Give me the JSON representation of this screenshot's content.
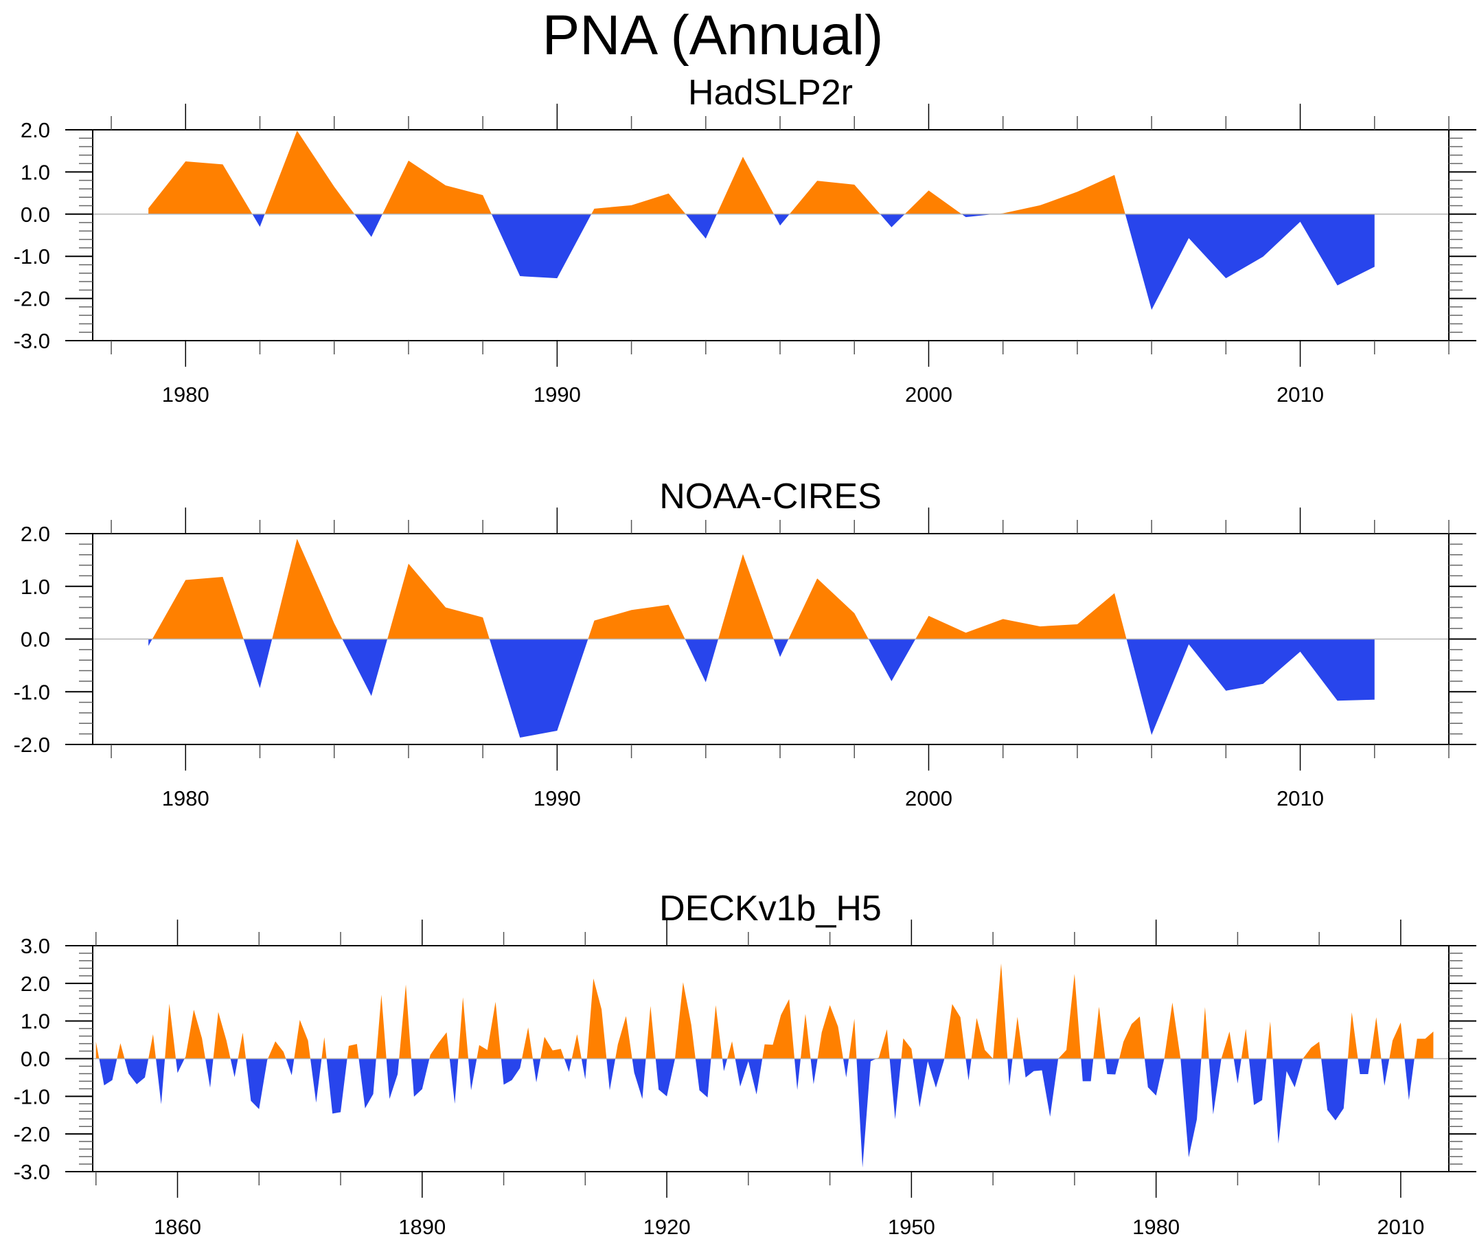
{
  "title": "PNA (Annual)",
  "colors": {
    "positive": "#ff8000",
    "negative": "#2845ec",
    "axis": "#000000",
    "zero_line": "#b4b4b4"
  },
  "chart_data": [
    {
      "type": "area",
      "title": "HadSLP2r",
      "xlabel": "",
      "ylabel": "",
      "fill": "positive above zero orange, negative below zero blue",
      "xlim": [
        1977.5,
        2014
      ],
      "ylim": [
        -3.0,
        2.0
      ],
      "yticks": [
        2.0,
        1.0,
        0.0,
        -1.0,
        -2.0,
        -3.0
      ],
      "ytick_labels": [
        "2.0",
        "1.0",
        "0.0",
        "-1.0",
        "-2.0",
        "-3.0"
      ],
      "xticks_major": [
        1980,
        1990,
        2000,
        2010
      ],
      "xtick_labels": [
        "1980",
        "1990",
        "2000",
        "2010"
      ],
      "xticks_minor_step": 2,
      "yticks_minor_step": 0.2,
      "x": [
        1979,
        1980,
        1981,
        1982,
        1983,
        1984,
        1985,
        1986,
        1987,
        1988,
        1989,
        1990,
        1991,
        1992,
        1993,
        1994,
        1995,
        1996,
        1997,
        1998,
        1999,
        2000,
        2001,
        2002,
        2003,
        2004,
        2005,
        2006,
        2007,
        2008,
        2009,
        2010,
        2011,
        2012
      ],
      "values": [
        0.14,
        1.25,
        1.18,
        -0.3,
        1.98,
        0.65,
        -0.54,
        1.27,
        0.68,
        0.45,
        -1.47,
        -1.52,
        0.13,
        0.21,
        0.49,
        -0.58,
        1.36,
        -0.27,
        0.79,
        0.7,
        -0.31,
        0.56,
        -0.07,
        0.02,
        0.21,
        0.53,
        0.93,
        -2.27,
        -0.57,
        -1.52,
        -1.01,
        -0.18,
        -1.69,
        -1.25
      ]
    },
    {
      "type": "area",
      "title": "NOAA-CIRES",
      "xlabel": "",
      "ylabel": "",
      "fill": "positive above zero orange, negative below zero blue",
      "xlim": [
        1977.5,
        2014
      ],
      "ylim": [
        -2.0,
        2.0
      ],
      "yticks": [
        2.0,
        1.0,
        0.0,
        -1.0,
        -2.0
      ],
      "ytick_labels": [
        "2.0",
        "1.0",
        "0.0",
        "-1.0",
        "-2.0"
      ],
      "xticks_major": [
        1980,
        1990,
        2000,
        2010
      ],
      "xtick_labels": [
        "1980",
        "1990",
        "2000",
        "2010"
      ],
      "xticks_minor_step": 2,
      "yticks_minor_step": 0.2,
      "x": [
        1979,
        1980,
        1981,
        1982,
        1983,
        1984,
        1985,
        1986,
        1987,
        1988,
        1989,
        1990,
        1991,
        1992,
        1993,
        1994,
        1995,
        1996,
        1997,
        1998,
        1999,
        2000,
        2001,
        2002,
        2003,
        2004,
        2005,
        2006,
        2007,
        2008,
        2009,
        2010,
        2011,
        2012
      ],
      "values": [
        -0.13,
        1.12,
        1.18,
        -0.93,
        1.9,
        0.3,
        -1.08,
        1.43,
        0.6,
        0.41,
        -1.87,
        -1.74,
        0.35,
        0.55,
        0.65,
        -0.82,
        1.61,
        -0.34,
        1.15,
        0.49,
        -0.8,
        0.44,
        0.12,
        0.38,
        0.24,
        0.28,
        0.87,
        -1.82,
        -0.1,
        -0.98,
        -0.85,
        -0.24,
        -1.17,
        -1.15
      ]
    },
    {
      "type": "area",
      "title": "DECKv1b_H5",
      "xlabel": "",
      "ylabel": "",
      "fill": "positive above zero orange, negative below zero blue",
      "xlim": [
        1849.6,
        2015.9
      ],
      "ylim": [
        -3.0,
        3.0
      ],
      "yticks": [
        3.0,
        2.0,
        1.0,
        0.0,
        -1.0,
        -2.0,
        -3.0
      ],
      "ytick_labels": [
        "3.0",
        "2.0",
        "1.0",
        "0.0",
        "-1.0",
        "-2.0",
        "-3.0"
      ],
      "xticks_major": [
        1860,
        1890,
        1920,
        1950,
        1980,
        2010
      ],
      "xtick_labels": [
        "1860",
        "1890",
        "1920",
        "1950",
        "1980",
        "2010"
      ],
      "xticks_minor_step": 10,
      "yticks_minor_step": 0.2,
      "x_start": 1850,
      "x_end": 2014,
      "values": [
        0.45,
        -0.71,
        -0.57,
        0.41,
        -0.4,
        -0.68,
        -0.5,
        0.65,
        -1.21,
        1.46,
        -0.38,
        0.06,
        1.3,
        0.54,
        -0.77,
        1.24,
        0.48,
        -0.49,
        0.69,
        -1.12,
        -1.34,
        -0.04,
        0.46,
        0.18,
        -0.44,
        1.03,
        0.48,
        -1.17,
        0.57,
        -1.46,
        -1.42,
        0.34,
        0.39,
        -1.32,
        -0.94,
        1.7,
        -1.07,
        -0.41,
        1.97,
        -1.01,
        -0.81,
        0.1,
        0.42,
        0.7,
        -1.2,
        1.63,
        -0.84,
        0.36,
        0.23,
        1.51,
        -0.69,
        -0.57,
        -0.25,
        0.83,
        -0.63,
        0.58,
        0.22,
        0.26,
        -0.35,
        0.65,
        -0.55,
        2.13,
        1.31,
        -0.84,
        0.38,
        1.13,
        -0.37,
        -1.07,
        1.4,
        -0.82,
        -1.0,
        -0.01,
        2.03,
        0.9,
        -0.84,
        -1.03,
        1.42,
        -0.33,
        0.46,
        -0.74,
        -0.07,
        -0.95,
        0.38,
        0.37,
        1.16,
        1.58,
        -0.83,
        1.19,
        -0.68,
        0.7,
        1.42,
        0.85,
        -0.5,
        1.06,
        -2.89,
        -0.07,
        0.03,
        0.78,
        -1.61,
        0.54,
        0.26,
        -1.29,
        -0.07,
        -0.77,
        -0.04,
        1.45,
        1.1,
        -0.58,
        1.08,
        0.23,
        0.0,
        2.53,
        -0.72,
        1.11,
        -0.5,
        -0.33,
        -0.31,
        -1.54,
        0.0,
        0.23,
        2.25,
        -0.6,
        -0.6,
        1.38,
        -0.41,
        -0.42,
        0.45,
        0.92,
        1.12,
        -0.76,
        -0.98,
        0.0,
        1.49,
        0.0,
        -2.62,
        -1.61,
        1.37,
        -1.48,
        0.0,
        0.72,
        -0.66,
        0.79,
        -1.23,
        -1.1,
        0.99,
        -2.26,
        -0.33,
        -0.76,
        0.0,
        0.29,
        0.45,
        -1.36,
        -1.64,
        -1.32,
        1.23,
        -0.41,
        -0.41,
        1.1,
        -0.72,
        0.48,
        0.96,
        -1.1,
        0.53,
        0.53,
        0.72
      ]
    }
  ]
}
